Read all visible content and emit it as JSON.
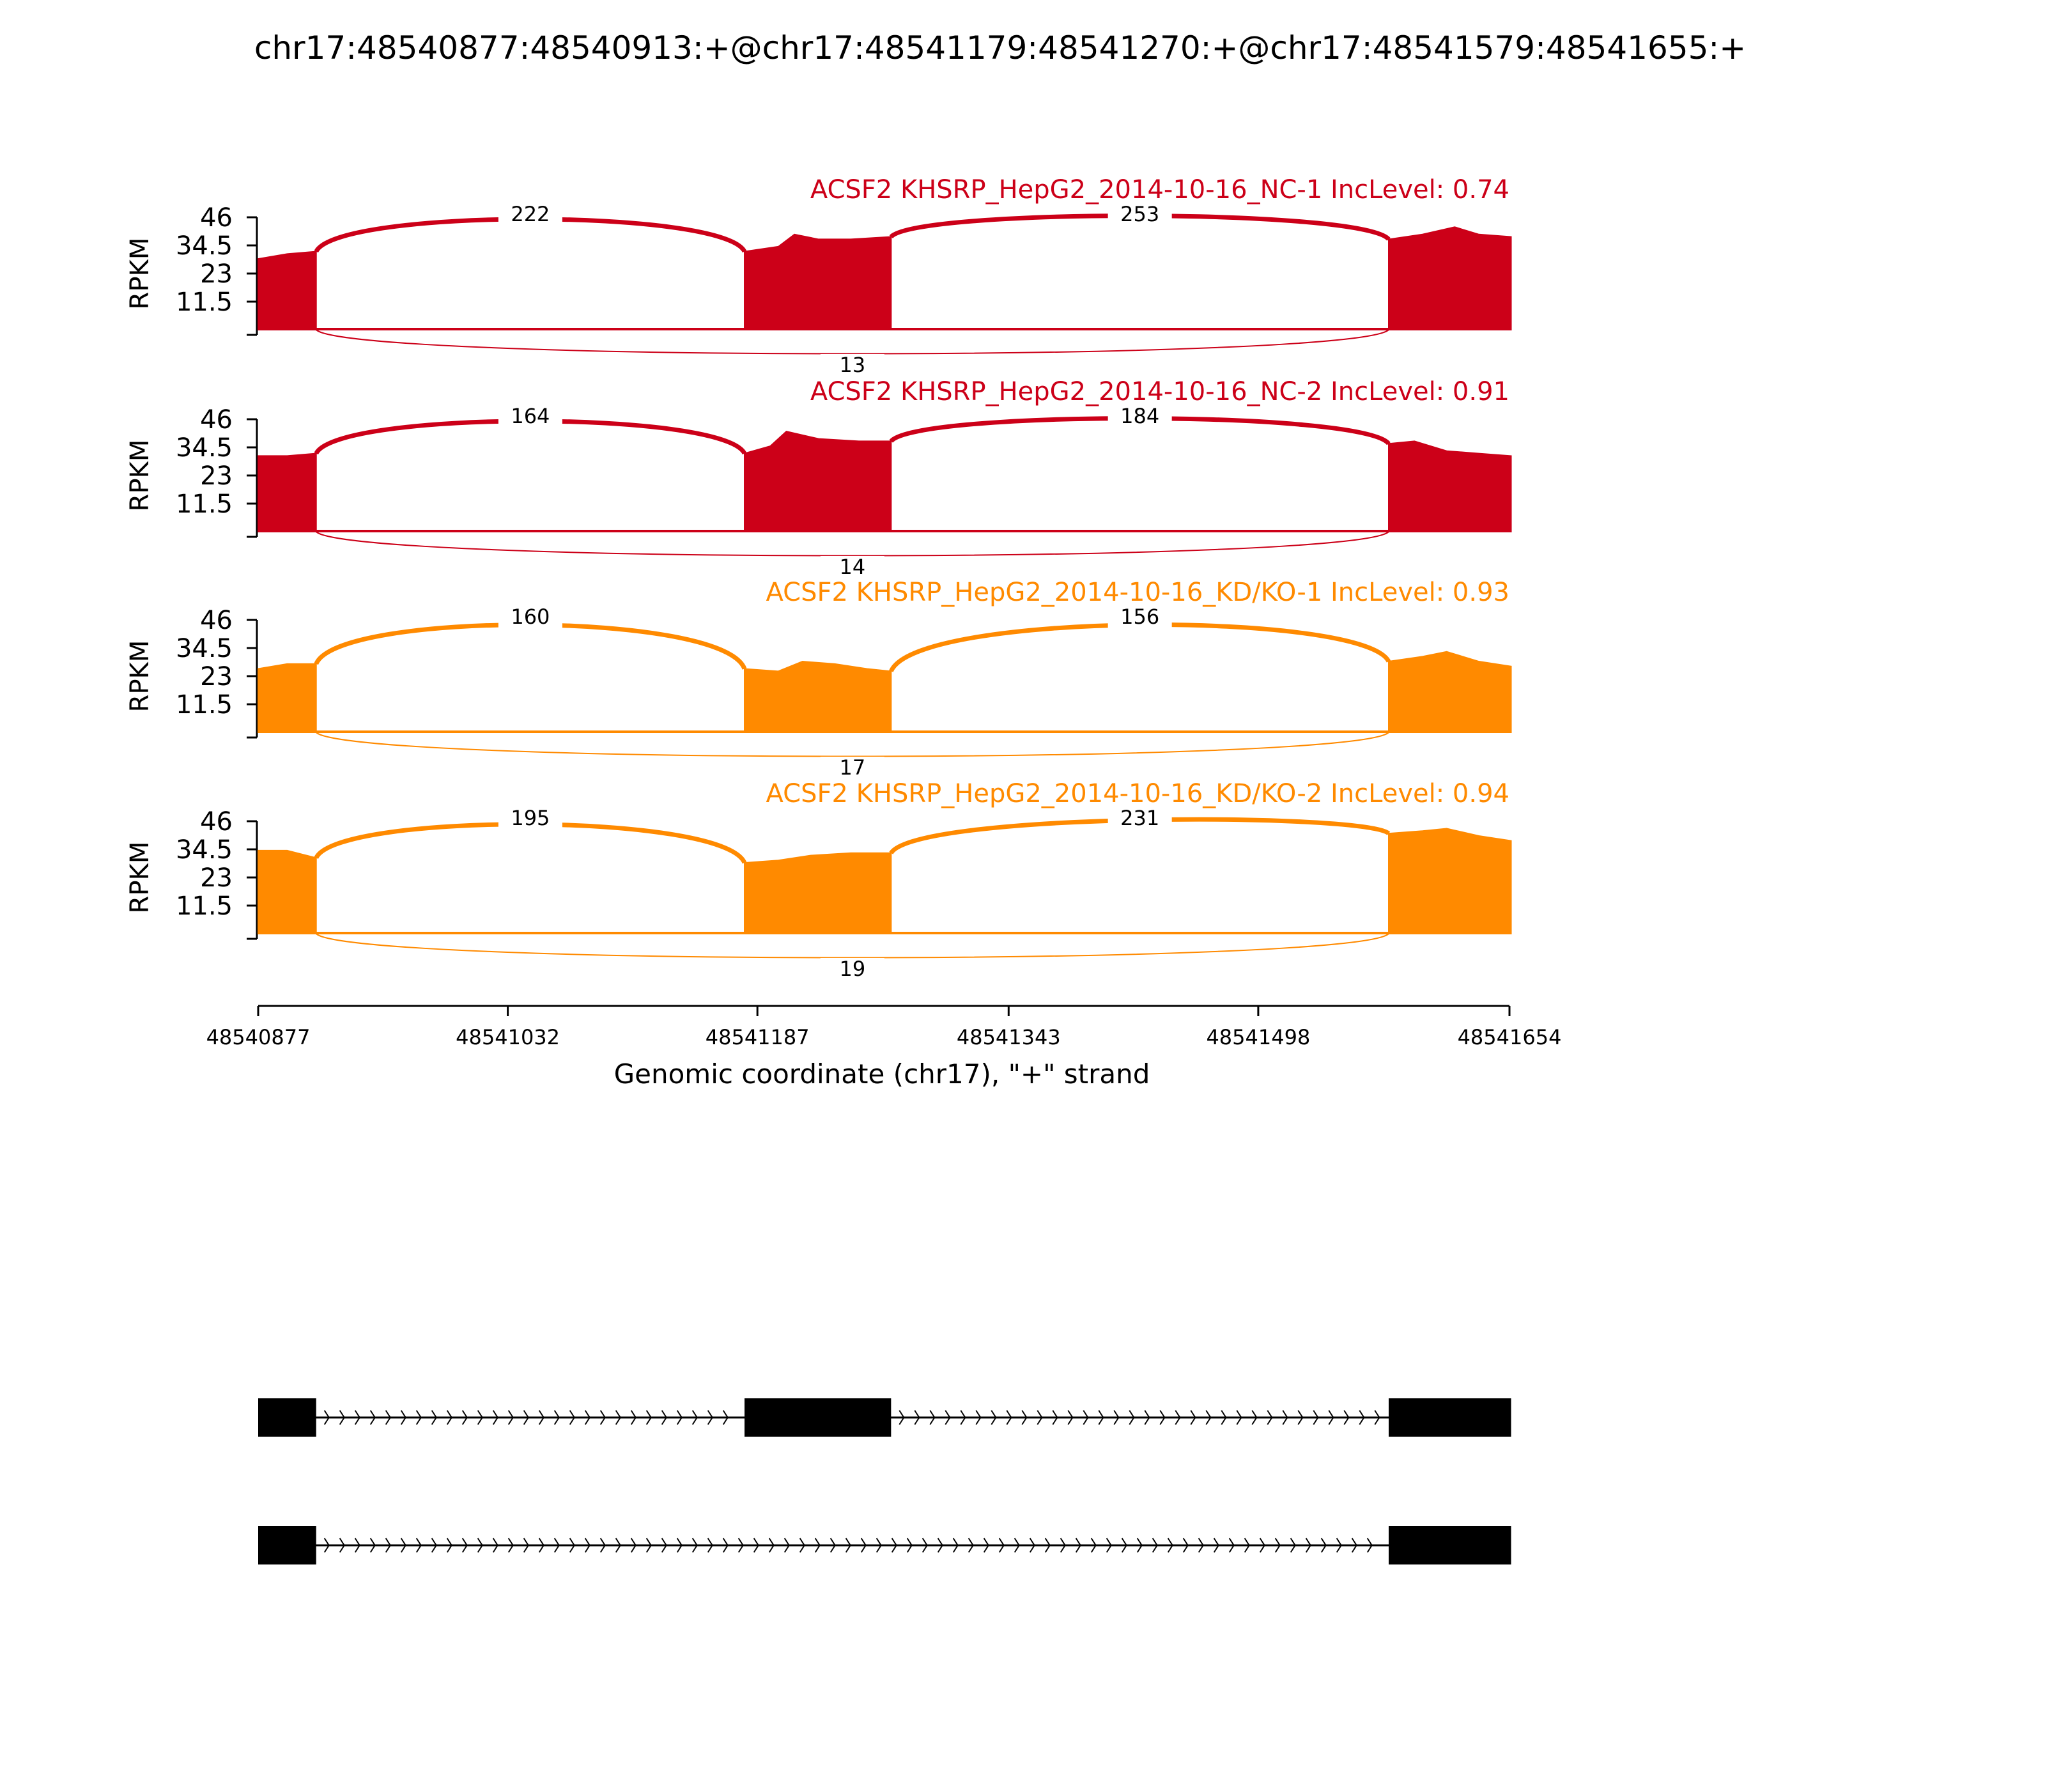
{
  "title": "chr17:48540877:48540913:+@chr17:48541179:48541270:+@chr17:48541579:48541655:+",
  "colors": {
    "nc": "#cc0018",
    "kd": "#ff8a00",
    "axis": "#000000",
    "gene": "#000000"
  },
  "chart_data": {
    "type": "area",
    "subtype": "sashimi",
    "xlabel": "Genomic coordinate (chr17), \"+\" strand",
    "ylabel": "RPKM",
    "ylim": [
      0,
      46
    ],
    "yticks": [
      "46",
      "34.5",
      "23",
      "11.5"
    ],
    "xlim": [
      48540877,
      48541654
    ],
    "xticks": [
      "48540877",
      "48541032",
      "48541187",
      "48541343",
      "48541498",
      "48541654"
    ],
    "exons": [
      [
        48540877,
        48540913
      ],
      [
        48541179,
        48541270
      ],
      [
        48541579,
        48541655
      ]
    ],
    "tracks": [
      {
        "label": "ACSF2 KHSRP_HepG2_2014-10-16_NC-1 IncLevel: 0.74",
        "color_key": "nc",
        "exon_coverage": [
          {
            "x": [
              48540877,
              48540895,
              48540913
            ],
            "y": [
              29,
              31,
              32
            ]
          },
          {
            "x": [
              48541179,
              48541200,
              48541210,
              48541225,
              48541245,
              48541270
            ],
            "y": [
              32,
              34,
              39,
              37,
              37,
              38
            ]
          },
          {
            "x": [
              48541579,
              48541600,
              48541620,
              48541635,
              48541655
            ],
            "y": [
              37,
              39,
              42,
              39,
              38
            ]
          }
        ],
        "junctions": [
          {
            "from": 48540913,
            "to": 48541179,
            "count": "222",
            "side": "above"
          },
          {
            "from": 48541270,
            "to": 48541579,
            "count": "253",
            "side": "above"
          },
          {
            "from": 48540913,
            "to": 48541579,
            "count": "13",
            "side": "below"
          }
        ]
      },
      {
        "label": "ACSF2 KHSRP_HepG2_2014-10-16_NC-2 IncLevel: 0.91",
        "color_key": "nc",
        "exon_coverage": [
          {
            "x": [
              48540877,
              48540895,
              48540913
            ],
            "y": [
              31,
              31,
              32
            ]
          },
          {
            "x": [
              48541179,
              48541195,
              48541205,
              48541225,
              48541250,
              48541270
            ],
            "y": [
              32,
              35,
              41,
              38,
              37,
              37
            ]
          },
          {
            "x": [
              48541579,
              48541595,
              48541615,
              48541635,
              48541655
            ],
            "y": [
              36,
              37,
              33,
              32,
              31
            ]
          }
        ],
        "junctions": [
          {
            "from": 48540913,
            "to": 48541179,
            "count": "164",
            "side": "above"
          },
          {
            "from": 48541270,
            "to": 48541579,
            "count": "184",
            "side": "above"
          },
          {
            "from": 48540913,
            "to": 48541579,
            "count": "14",
            "side": "below"
          }
        ]
      },
      {
        "label": "ACSF2 KHSRP_HepG2_2014-10-16_KD/KO-1 IncLevel: 0.93",
        "color_key": "kd",
        "exon_coverage": [
          {
            "x": [
              48540877,
              48540895,
              48540913
            ],
            "y": [
              26,
              28,
              28
            ]
          },
          {
            "x": [
              48541179,
              48541200,
              48541215,
              48541235,
              48541255,
              48541270
            ],
            "y": [
              26,
              25,
              29,
              28,
              26,
              25
            ]
          },
          {
            "x": [
              48541579,
              48541600,
              48541615,
              48541635,
              48541655
            ],
            "y": [
              29,
              31,
              33,
              29,
              27
            ]
          }
        ],
        "junctions": [
          {
            "from": 48540913,
            "to": 48541179,
            "count": "160",
            "side": "above"
          },
          {
            "from": 48541270,
            "to": 48541579,
            "count": "156",
            "side": "above"
          },
          {
            "from": 48540913,
            "to": 48541579,
            "count": "17",
            "side": "below"
          }
        ]
      },
      {
        "label": "ACSF2 KHSRP_HepG2_2014-10-16_KD/KO-2 IncLevel: 0.94",
        "color_key": "kd",
        "exon_coverage": [
          {
            "x": [
              48540877,
              48540895,
              48540913
            ],
            "y": [
              34,
              34,
              31
            ]
          },
          {
            "x": [
              48541179,
              48541200,
              48541220,
              48541245,
              48541270
            ],
            "y": [
              29,
              30,
              32,
              33,
              33
            ]
          },
          {
            "x": [
              48541579,
              48541600,
              48541615,
              48541635,
              48541655
            ],
            "y": [
              41,
              42,
              43,
              40,
              38
            ]
          }
        ],
        "junctions": [
          {
            "from": 48540913,
            "to": 48541179,
            "count": "195",
            "side": "above"
          },
          {
            "from": 48541270,
            "to": 48541579,
            "count": "231",
            "side": "above"
          },
          {
            "from": 48540913,
            "to": 48541579,
            "count": "19",
            "side": "below"
          }
        ]
      }
    ],
    "isoforms": [
      {
        "exons": [
          [
            48540877,
            48540913
          ],
          [
            48541179,
            48541270
          ],
          [
            48541579,
            48541655
          ]
        ]
      },
      {
        "exons": [
          [
            48540877,
            48540913
          ],
          [
            48541579,
            48541655
          ]
        ]
      }
    ]
  }
}
